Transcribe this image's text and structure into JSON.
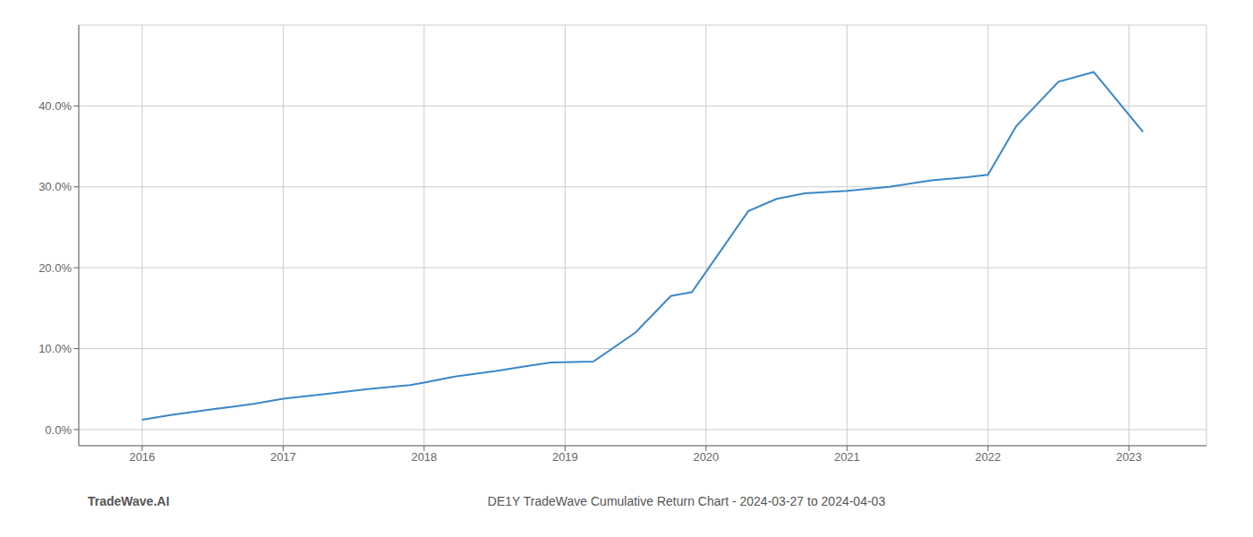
{
  "chart_data": {
    "type": "line",
    "x": [
      2016.0,
      2016.2,
      2016.5,
      2016.8,
      2017.0,
      2017.3,
      2017.6,
      2017.9,
      2018.0,
      2018.2,
      2018.5,
      2018.75,
      2018.9,
      2019.2,
      2019.5,
      2019.75,
      2019.9,
      2020.1,
      2020.3,
      2020.5,
      2020.7,
      2021.0,
      2021.3,
      2021.6,
      2021.85,
      2022.0,
      2022.2,
      2022.5,
      2022.75,
      2023.1
    ],
    "values": [
      1.2,
      1.8,
      2.5,
      3.2,
      3.8,
      4.4,
      5.0,
      5.5,
      5.8,
      6.5,
      7.2,
      7.9,
      8.3,
      8.4,
      12.0,
      16.5,
      17.0,
      22.0,
      27.0,
      28.5,
      29.2,
      29.5,
      30.0,
      30.8,
      31.2,
      31.5,
      37.5,
      43.0,
      44.2,
      36.8
    ],
    "color": "#3a87c8",
    "xlim": [
      2015.55,
      2023.55
    ],
    "xticks": [
      2016,
      2017,
      2018,
      2019,
      2020,
      2021,
      2022,
      2023
    ],
    "ylim": [
      -2.0,
      50.0
    ],
    "yticks": [
      {
        "value": 0,
        "label": "0.0%"
      },
      {
        "value": 10,
        "label": "10.0%"
      },
      {
        "value": 20,
        "label": "20.0%"
      },
      {
        "value": 30,
        "label": "30.0%"
      },
      {
        "value": 40,
        "label": "40.0%"
      }
    ],
    "grid": true,
    "annotations": [
      "TradeWave.AI",
      "DE1Y TradeWave Cumulative Return Chart - 2024-03-27 to 2024-04-03"
    ]
  }
}
